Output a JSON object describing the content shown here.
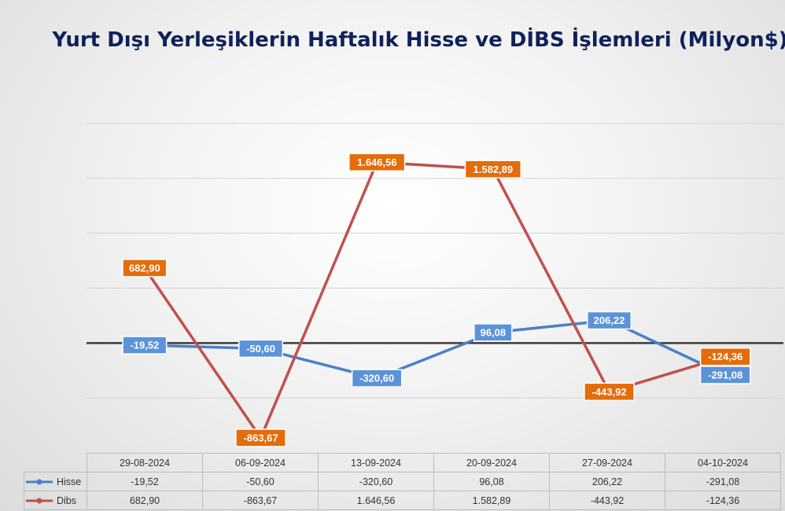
{
  "chart_data": {
    "type": "line",
    "title": "Yurt Dışı Yerleşiklerin Haftalık Hisse ve DİBS İşlemleri (Milyon$)",
    "categories": [
      "29-08-2024",
      "06-09-2024",
      "13-09-2024",
      "20-09-2024",
      "27-09-2024",
      "04-10-2024"
    ],
    "series": [
      {
        "name": "Hisse",
        "values": [
          -19.52,
          -50.6,
          -320.6,
          96.08,
          206.22,
          -291.08
        ],
        "labels": [
          "-19,52",
          "-50,60",
          "-320,60",
          "96,08",
          "206,22",
          "-291,08"
        ],
        "color": "#4a80c8",
        "label_bg": "#5b93d8"
      },
      {
        "name": "Dibs",
        "values": [
          682.9,
          -863.67,
          1646.56,
          1582.89,
          -443.92,
          -124.36
        ],
        "labels": [
          "682,90",
          "-863,67",
          "1.646,56",
          "1.582,89",
          "-443,92",
          "-124,36"
        ],
        "color": "#c0504d",
        "label_bg": "#e46c0a"
      }
    ],
    "ylim": [
      -1000,
      2000
    ],
    "grid": true,
    "legend": "data-table"
  }
}
